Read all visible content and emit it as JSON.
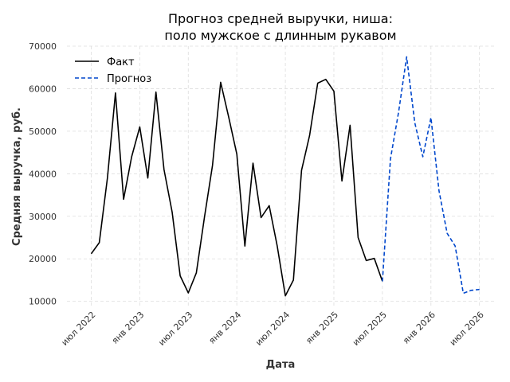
{
  "chart_data": {
    "type": "line",
    "title_lines": [
      "Прогноз средней выручки, ниша:",
      "поло мужское с длинным рукавом"
    ],
    "xlabel": "Дата",
    "ylabel": "Средняя выручка, руб.",
    "ylim": [
      9000,
      70000
    ],
    "xlim": [
      "2022-04",
      "2026-09"
    ],
    "yticks": [
      10000,
      20000,
      30000,
      40000,
      50000,
      60000,
      70000
    ],
    "ytick_labels": [
      "10000",
      "20000",
      "30000",
      "40000",
      "50000",
      "60000",
      "70000"
    ],
    "xticks": [
      "2022-07",
      "2023-01",
      "2023-07",
      "2024-01",
      "2024-07",
      "2025-01",
      "2025-07",
      "2026-01",
      "2026-07"
    ],
    "xtick_labels": [
      "июл 2022",
      "янв 2023",
      "июл 2023",
      "янв 2024",
      "июл 2024",
      "янв 2025",
      "июл 2025",
      "янв 2026",
      "июл 2026"
    ],
    "grid": true,
    "legend_position": "top-left",
    "series": [
      {
        "name": "Факт",
        "color": "#000000",
        "style": "solid",
        "x": [
          "2022-07",
          "2022-08",
          "2022-09",
          "2022-10",
          "2022-11",
          "2022-12",
          "2023-01",
          "2023-02",
          "2023-03",
          "2023-04",
          "2023-05",
          "2023-06",
          "2023-07",
          "2023-08",
          "2023-09",
          "2023-10",
          "2023-11",
          "2023-12",
          "2024-01",
          "2024-02",
          "2024-03",
          "2024-04",
          "2024-05",
          "2024-06",
          "2024-07",
          "2024-08",
          "2024-09",
          "2024-10",
          "2024-11",
          "2024-12",
          "2025-01",
          "2025-02",
          "2025-03",
          "2025-04",
          "2025-05",
          "2025-06",
          "2025-07"
        ],
        "y": [
          21200,
          23800,
          39000,
          59000,
          34000,
          44000,
          51000,
          39000,
          59200,
          41000,
          31000,
          16000,
          12000,
          16700,
          29800,
          42000,
          61500,
          53300,
          44600,
          23000,
          42500,
          29700,
          32500,
          23000,
          11300,
          15000,
          40800,
          49000,
          61300,
          62200,
          59400,
          38300,
          51400,
          25000,
          19600,
          20100,
          14700
        ]
      },
      {
        "name": "Прогноз",
        "color": "#0047cc",
        "style": "dashed",
        "x": [
          "2025-07",
          "2025-08",
          "2025-09",
          "2025-10",
          "2025-11",
          "2025-12",
          "2026-01",
          "2026-02",
          "2026-03",
          "2026-04",
          "2026-05",
          "2026-06",
          "2026-07"
        ],
        "y": [
          14700,
          43500,
          54500,
          67500,
          52000,
          44000,
          53200,
          36000,
          26000,
          23000,
          11900,
          12600,
          12800
        ]
      }
    ]
  }
}
